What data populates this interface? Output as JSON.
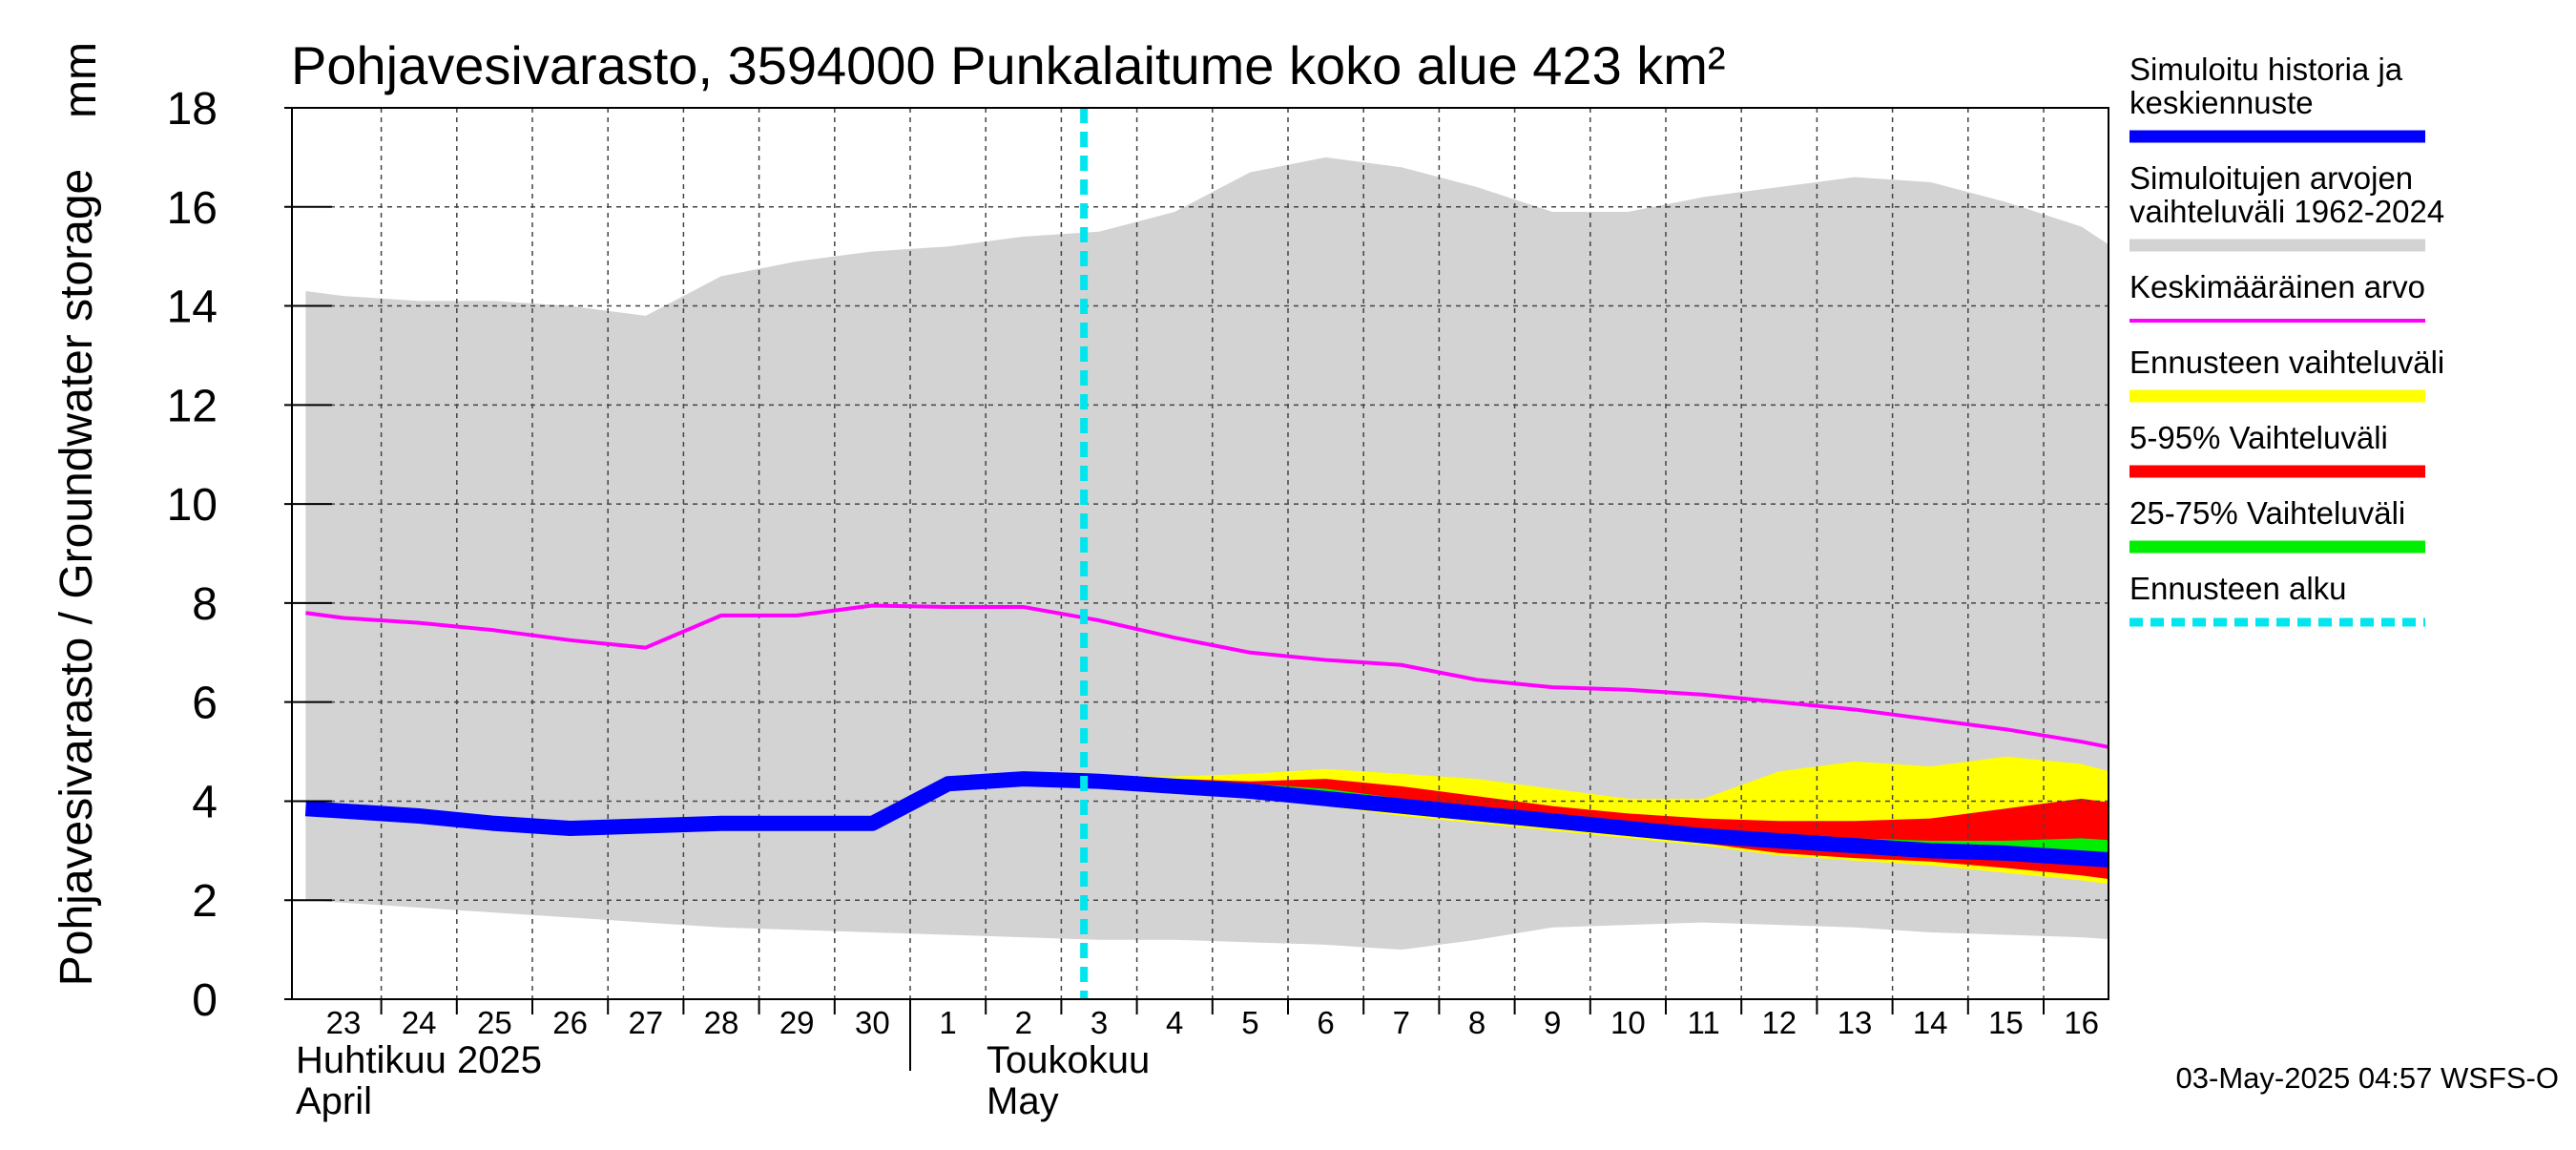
{
  "chart_data": {
    "type": "area",
    "title": "Pohjavesivarasto, 3594000 Punkalaitume koko alue 423 km²",
    "ylabel": "Pohjavesivarasto / Groundwater storage",
    "yunit": "mm",
    "ylim": [
      0,
      18
    ],
    "yticks": [
      "0",
      "2",
      "4",
      "6",
      "8",
      "10",
      "12",
      "14",
      "16",
      "18"
    ],
    "grid": true,
    "legend_position": "right",
    "x_day_labels": [
      "23",
      "24",
      "25",
      "26",
      "27",
      "28",
      "29",
      "30",
      "1",
      "2",
      "3",
      "4",
      "5",
      "6",
      "7",
      "8",
      "9",
      "10",
      "11",
      "12",
      "13",
      "14",
      "15",
      "16"
    ],
    "x_day_offsets": [
      0,
      1,
      2,
      3,
      4,
      5,
      6,
      7,
      8,
      9,
      10,
      11,
      12,
      13,
      14,
      15,
      16,
      17,
      18,
      19,
      20,
      21,
      22,
      23
    ],
    "month_labels": [
      {
        "line1": "Huhtikuu  2025",
        "line2": "April",
        "start_index": 0
      },
      {
        "line1": "Toukokuu",
        "line2": "May",
        "start_index": 8
      }
    ],
    "forecast_start_offset": 9.8,
    "series": [
      {
        "name": "Simuloitujen arvojen vaihteluväli 1962-2024",
        "kind": "band",
        "color": "#d3d3d3",
        "x": [
          -0.5,
          0,
          1,
          2,
          3,
          4,
          5,
          6,
          7,
          8,
          9,
          10,
          11,
          12,
          13,
          14,
          15,
          16,
          17,
          18,
          19,
          20,
          21,
          22,
          23,
          23.5
        ],
        "upper": [
          14.3,
          14.2,
          14.1,
          14.1,
          14.0,
          13.8,
          14.6,
          14.9,
          15.1,
          15.2,
          15.4,
          15.5,
          15.9,
          16.7,
          17.0,
          16.8,
          16.4,
          15.9,
          15.9,
          16.2,
          16.4,
          16.6,
          16.5,
          16.1,
          15.6,
          15.1
        ],
        "lower": [
          2.0,
          1.95,
          1.85,
          1.75,
          1.65,
          1.55,
          1.45,
          1.4,
          1.35,
          1.3,
          1.25,
          1.2,
          1.2,
          1.15,
          1.1,
          1.0,
          1.2,
          1.45,
          1.5,
          1.55,
          1.5,
          1.45,
          1.35,
          1.3,
          1.25,
          1.2
        ]
      },
      {
        "name": "Ennusteen vaihteluväli",
        "kind": "band",
        "color": "#ffff00",
        "x": [
          10,
          11,
          12,
          13,
          14,
          15,
          16,
          17,
          18,
          19,
          20,
          21,
          22,
          23,
          23.5
        ],
        "upper": [
          4.5,
          4.5,
          4.55,
          4.65,
          4.55,
          4.45,
          4.25,
          4.05,
          4.05,
          4.6,
          4.8,
          4.7,
          4.9,
          4.75,
          4.55
        ],
        "lower": [
          4.5,
          4.35,
          4.15,
          3.9,
          3.7,
          3.55,
          3.4,
          3.25,
          3.1,
          2.9,
          2.8,
          2.7,
          2.55,
          2.4,
          2.3
        ]
      },
      {
        "name": "5-95% Vaihteluväli",
        "kind": "band",
        "color": "#ff0000",
        "x": [
          10,
          11,
          12,
          13,
          14,
          15,
          16,
          17,
          18,
          19,
          20,
          21,
          22,
          23,
          23.5
        ],
        "upper": [
          4.5,
          4.45,
          4.4,
          4.45,
          4.3,
          4.1,
          3.9,
          3.75,
          3.65,
          3.6,
          3.6,
          3.65,
          3.85,
          4.05,
          3.95
        ],
        "lower": [
          4.5,
          4.4,
          4.2,
          3.95,
          3.75,
          3.6,
          3.45,
          3.3,
          3.15,
          2.95,
          2.85,
          2.78,
          2.65,
          2.5,
          2.4
        ]
      },
      {
        "name": "25-75% Vaihteluväli",
        "kind": "band",
        "color": "#00ee00",
        "x": [
          10,
          11,
          12,
          13,
          14,
          15,
          16,
          17,
          18,
          19,
          20,
          21,
          22,
          23,
          23.5
        ],
        "upper": [
          4.5,
          4.45,
          4.35,
          4.25,
          4.05,
          3.9,
          3.7,
          3.55,
          3.45,
          3.35,
          3.25,
          3.2,
          3.2,
          3.25,
          3.2
        ],
        "lower": [
          4.5,
          4.4,
          4.25,
          4.05,
          3.85,
          3.7,
          3.5,
          3.35,
          3.2,
          3.05,
          2.95,
          2.9,
          2.85,
          2.75,
          2.7
        ]
      },
      {
        "name": "Keskimääräinen arvo",
        "kind": "line",
        "color": "#ff00ff",
        "width": 4,
        "x": [
          -0.5,
          0,
          1,
          2,
          3,
          4,
          5,
          6,
          7,
          8,
          9,
          10,
          11,
          12,
          13,
          14,
          15,
          16,
          17,
          18,
          19,
          20,
          21,
          22,
          23,
          23.5
        ],
        "y": [
          7.8,
          7.7,
          7.6,
          7.45,
          7.25,
          7.1,
          7.75,
          7.75,
          7.95,
          7.92,
          7.92,
          7.65,
          7.3,
          7.0,
          6.85,
          6.75,
          6.45,
          6.3,
          6.25,
          6.15,
          6.0,
          5.85,
          5.65,
          5.45,
          5.2,
          5.05
        ]
      },
      {
        "name": "Simuloitu historia ja keskiennuste",
        "kind": "line",
        "color": "#0000ff",
        "width": 16,
        "x": [
          -0.5,
          0,
          1,
          2,
          3,
          4,
          5,
          6,
          7,
          8,
          9,
          10,
          11,
          12,
          13,
          14,
          15,
          16,
          17,
          18,
          19,
          20,
          21,
          22,
          23,
          23.5
        ],
        "y": [
          3.85,
          3.8,
          3.7,
          3.55,
          3.45,
          3.5,
          3.55,
          3.55,
          3.55,
          4.35,
          4.45,
          4.4,
          4.3,
          4.2,
          4.05,
          3.9,
          3.75,
          3.6,
          3.45,
          3.3,
          3.2,
          3.1,
          3.0,
          2.95,
          2.85,
          2.8
        ]
      },
      {
        "name": "Ennusteen alku",
        "kind": "vline",
        "color": "#00e5ee",
        "x": 9.8
      }
    ]
  },
  "legend": [
    {
      "label_lines": [
        "Simuloitu historia ja",
        "keskiennuste"
      ],
      "color": "#0000ff",
      "style": "thick"
    },
    {
      "label_lines": [
        "Simuloitujen arvojen",
        "vaihteluväli 1962-2024"
      ],
      "color": "#d3d3d3",
      "style": "thick"
    },
    {
      "label_lines": [
        "Keskimääräinen arvo"
      ],
      "color": "#ff00ff",
      "style": "thin"
    },
    {
      "label_lines": [
        "Ennusteen vaihteluväli"
      ],
      "color": "#ffff00",
      "style": "thick"
    },
    {
      "label_lines": [
        "5-95% Vaihteluväli"
      ],
      "color": "#ff0000",
      "style": "thick"
    },
    {
      "label_lines": [
        "25-75% Vaihteluväli"
      ],
      "color": "#00ee00",
      "style": "thick"
    },
    {
      "label_lines": [
        "Ennusteen alku"
      ],
      "color": "#00e5ee",
      "style": "dashed"
    }
  ],
  "footer": "03-May-2025 04:57 WSFS-O"
}
